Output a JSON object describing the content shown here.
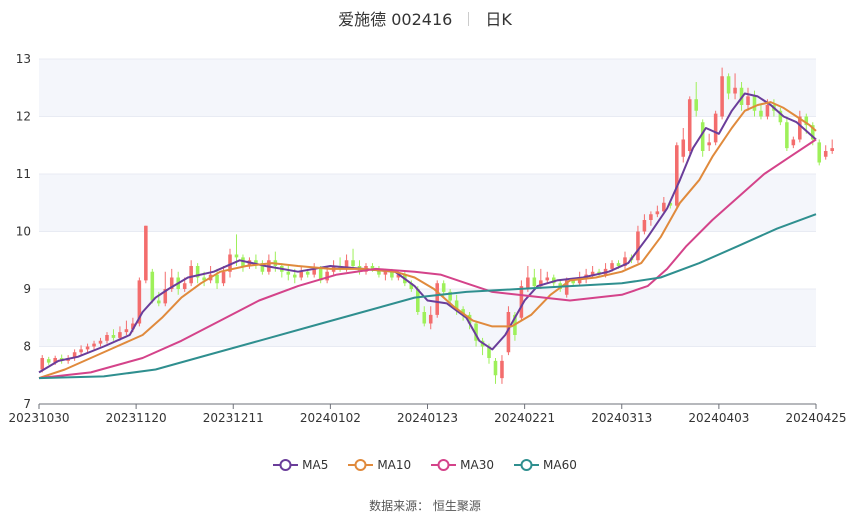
{
  "title": {
    "name_code": "爱施德 002416",
    "period": "日K"
  },
  "source": {
    "label": "数据来源：",
    "provider": "恒生聚源"
  },
  "colors": {
    "up": "#f36d6d",
    "down": "#9ef05a",
    "grid": "#e8ebf3",
    "band": "#f4f6fb",
    "axis_text": "#333333"
  },
  "chart_data": {
    "type": "candlestick",
    "ylim": [
      7,
      13
    ],
    "yticks": [
      7,
      8,
      9,
      10,
      11,
      12,
      13
    ],
    "xlim": [
      0,
      120
    ],
    "xticks": [
      {
        "i": 0,
        "label": "20231030"
      },
      {
        "i": 15,
        "label": "20231120"
      },
      {
        "i": 30,
        "label": "20231211"
      },
      {
        "i": 45,
        "label": "20240102"
      },
      {
        "i": 60,
        "label": "20240123"
      },
      {
        "i": 75,
        "label": "20240221"
      },
      {
        "i": 90,
        "label": "20240313"
      },
      {
        "i": 105,
        "label": "20240403"
      },
      {
        "i": 120,
        "label": "20240425"
      }
    ],
    "candles": [
      [
        7.6,
        7.8,
        7.55,
        7.85
      ],
      [
        7.78,
        7.72,
        7.68,
        7.82
      ],
      [
        7.72,
        7.8,
        7.68,
        7.84
      ],
      [
        7.8,
        7.75,
        7.7,
        7.86
      ],
      [
        7.75,
        7.8,
        7.7,
        7.85
      ],
      [
        7.8,
        7.9,
        7.75,
        7.95
      ],
      [
        7.9,
        7.95,
        7.85,
        8.02
      ],
      [
        7.95,
        8.0,
        7.9,
        8.05
      ],
      [
        8.0,
        8.05,
        7.95,
        8.1
      ],
      [
        8.05,
        8.1,
        8.0,
        8.15
      ],
      [
        8.1,
        8.2,
        8.05,
        8.25
      ],
      [
        8.2,
        8.15,
        8.1,
        8.3
      ],
      [
        8.15,
        8.25,
        8.1,
        8.35
      ],
      [
        8.25,
        8.3,
        8.2,
        8.45
      ],
      [
        8.3,
        8.4,
        8.25,
        8.5
      ],
      [
        8.4,
        9.15,
        8.35,
        9.2
      ],
      [
        9.15,
        10.1,
        9.1,
        10.1
      ],
      [
        9.3,
        8.8,
        8.75,
        9.35
      ],
      [
        8.8,
        8.75,
        8.7,
        8.95
      ],
      [
        8.75,
        9.0,
        8.7,
        9.3
      ],
      [
        9.0,
        9.2,
        8.95,
        9.35
      ],
      [
        9.2,
        9.0,
        8.9,
        9.3
      ],
      [
        9.0,
        9.1,
        8.95,
        9.2
      ],
      [
        9.1,
        9.4,
        9.05,
        9.5
      ],
      [
        9.4,
        9.2,
        9.1,
        9.45
      ],
      [
        9.2,
        9.15,
        9.05,
        9.3
      ],
      [
        9.15,
        9.25,
        9.1,
        9.4
      ],
      [
        9.25,
        9.1,
        9.0,
        9.35
      ],
      [
        9.1,
        9.3,
        9.05,
        9.4
      ],
      [
        9.3,
        9.6,
        9.2,
        9.7
      ],
      [
        9.6,
        9.55,
        9.4,
        9.95
      ],
      [
        9.55,
        9.4,
        9.3,
        9.6
      ],
      [
        9.4,
        9.5,
        9.35,
        9.55
      ],
      [
        9.5,
        9.45,
        9.35,
        9.6
      ],
      [
        9.45,
        9.3,
        9.25,
        9.5
      ],
      [
        9.3,
        9.5,
        9.25,
        9.6
      ],
      [
        9.5,
        9.4,
        9.3,
        9.65
      ],
      [
        9.4,
        9.3,
        9.2,
        9.45
      ],
      [
        9.3,
        9.25,
        9.15,
        9.4
      ],
      [
        9.25,
        9.2,
        9.1,
        9.35
      ],
      [
        9.2,
        9.3,
        9.15,
        9.4
      ],
      [
        9.3,
        9.25,
        9.2,
        9.35
      ],
      [
        9.25,
        9.35,
        9.2,
        9.45
      ],
      [
        9.35,
        9.15,
        9.1,
        9.4
      ],
      [
        9.15,
        9.3,
        9.1,
        9.4
      ],
      [
        9.3,
        9.4,
        9.25,
        9.5
      ],
      [
        9.4,
        9.35,
        9.3,
        9.55
      ],
      [
        9.35,
        9.5,
        9.3,
        9.6
      ],
      [
        9.5,
        9.4,
        9.35,
        9.7
      ],
      [
        9.4,
        9.3,
        9.25,
        9.5
      ],
      [
        9.3,
        9.4,
        9.25,
        9.45
      ],
      [
        9.4,
        9.35,
        9.3,
        9.45
      ],
      [
        9.35,
        9.25,
        9.2,
        9.4
      ],
      [
        9.25,
        9.3,
        9.15,
        9.35
      ],
      [
        9.3,
        9.2,
        9.15,
        9.35
      ],
      [
        9.2,
        9.25,
        9.15,
        9.3
      ],
      [
        9.25,
        9.1,
        9.05,
        9.3
      ],
      [
        9.1,
        9.0,
        8.95,
        9.15
      ],
      [
        9.0,
        8.6,
        8.55,
        9.05
      ],
      [
        8.6,
        8.4,
        8.35,
        8.7
      ],
      [
        8.4,
        8.55,
        8.3,
        8.7
      ],
      [
        8.55,
        9.1,
        8.5,
        9.15
      ],
      [
        9.1,
        8.95,
        8.85,
        9.15
      ],
      [
        8.95,
        8.8,
        8.7,
        9.0
      ],
      [
        8.8,
        8.65,
        8.55,
        8.9
      ],
      [
        8.65,
        8.55,
        8.45,
        8.7
      ],
      [
        8.55,
        8.4,
        8.3,
        8.6
      ],
      [
        8.4,
        8.1,
        8.0,
        8.45
      ],
      [
        8.1,
        8.0,
        7.85,
        8.15
      ],
      [
        8.0,
        7.8,
        7.7,
        8.05
      ],
      [
        7.75,
        7.5,
        7.35,
        7.8
      ],
      [
        7.45,
        7.75,
        7.35,
        7.85
      ],
      [
        7.9,
        8.6,
        7.85,
        8.7
      ],
      [
        8.55,
        8.2,
        8.1,
        8.6
      ],
      [
        8.5,
        9.05,
        8.45,
        9.15
      ],
      [
        9.0,
        9.2,
        8.95,
        9.4
      ],
      [
        9.2,
        9.05,
        9.0,
        9.35
      ],
      [
        9.05,
        9.15,
        9.0,
        9.35
      ],
      [
        9.15,
        9.2,
        9.1,
        9.3
      ],
      [
        9.2,
        9.1,
        9.05,
        9.25
      ],
      [
        9.1,
        9.0,
        8.95,
        9.15
      ],
      [
        8.9,
        9.15,
        8.85,
        9.2
      ],
      [
        9.15,
        9.1,
        9.05,
        9.2
      ],
      [
        9.1,
        9.2,
        9.05,
        9.3
      ],
      [
        9.2,
        9.25,
        9.1,
        9.35
      ],
      [
        9.25,
        9.3,
        9.2,
        9.4
      ],
      [
        9.3,
        9.25,
        9.2,
        9.35
      ],
      [
        9.25,
        9.35,
        9.2,
        9.45
      ],
      [
        9.35,
        9.45,
        9.3,
        9.5
      ],
      [
        9.45,
        9.4,
        9.35,
        9.5
      ],
      [
        9.4,
        9.55,
        9.35,
        9.65
      ],
      [
        9.55,
        9.5,
        9.45,
        9.6
      ],
      [
        9.5,
        10.0,
        9.45,
        10.1
      ],
      [
        10.0,
        10.2,
        9.95,
        10.3
      ],
      [
        10.2,
        10.3,
        10.1,
        10.35
      ],
      [
        10.3,
        10.35,
        10.25,
        10.45
      ],
      [
        10.35,
        10.5,
        10.3,
        10.6
      ],
      [
        10.5,
        10.45,
        10.4,
        10.55
      ],
      [
        10.45,
        11.5,
        10.4,
        11.55
      ],
      [
        11.3,
        11.6,
        11.2,
        11.8
      ],
      [
        11.4,
        12.3,
        11.35,
        12.35
      ],
      [
        12.3,
        12.1,
        12.0,
        12.6
      ],
      [
        11.9,
        11.4,
        11.3,
        11.95
      ],
      [
        11.5,
        11.55,
        11.4,
        11.7
      ],
      [
        11.55,
        12.05,
        11.5,
        12.1
      ],
      [
        12.0,
        12.7,
        11.95,
        12.85
      ],
      [
        12.7,
        12.4,
        12.3,
        12.75
      ],
      [
        12.4,
        12.5,
        12.3,
        12.75
      ],
      [
        12.5,
        12.2,
        12.1,
        12.6
      ],
      [
        12.2,
        12.35,
        12.1,
        12.5
      ],
      [
        12.35,
        12.1,
        12.0,
        12.45
      ],
      [
        12.1,
        12.0,
        11.95,
        12.2
      ],
      [
        12.0,
        12.2,
        11.95,
        12.3
      ],
      [
        12.2,
        12.1,
        12.0,
        12.3
      ],
      [
        12.1,
        11.9,
        11.85,
        12.15
      ],
      [
        11.9,
        11.45,
        11.4,
        12.0
      ],
      [
        11.5,
        11.6,
        11.45,
        11.65
      ],
      [
        11.6,
        12.0,
        11.55,
        12.1
      ],
      [
        12.0,
        11.85,
        11.7,
        12.05
      ],
      [
        11.85,
        11.6,
        11.5,
        11.9
      ],
      [
        11.55,
        11.2,
        11.15,
        11.6
      ],
      [
        11.3,
        11.4,
        11.25,
        11.5
      ],
      [
        11.4,
        11.45,
        11.35,
        11.6
      ]
    ],
    "series": [
      {
        "name": "MA5",
        "color": "#6a3d9a",
        "points": [
          [
            0,
            7.55
          ],
          [
            3,
            7.75
          ],
          [
            6,
            7.82
          ],
          [
            10,
            8.0
          ],
          [
            14,
            8.2
          ],
          [
            16,
            8.6
          ],
          [
            18,
            8.85
          ],
          [
            20,
            9.0
          ],
          [
            23,
            9.2
          ],
          [
            27,
            9.3
          ],
          [
            31,
            9.5
          ],
          [
            35,
            9.4
          ],
          [
            40,
            9.3
          ],
          [
            45,
            9.4
          ],
          [
            50,
            9.35
          ],
          [
            55,
            9.3
          ],
          [
            58,
            9.05
          ],
          [
            60,
            8.8
          ],
          [
            63,
            8.75
          ],
          [
            66,
            8.5
          ],
          [
            68,
            8.1
          ],
          [
            70,
            7.95
          ],
          [
            72,
            8.2
          ],
          [
            75,
            8.8
          ],
          [
            77,
            9.05
          ],
          [
            80,
            9.15
          ],
          [
            84,
            9.2
          ],
          [
            88,
            9.3
          ],
          [
            91,
            9.45
          ],
          [
            94,
            9.9
          ],
          [
            97,
            10.4
          ],
          [
            99,
            10.9
          ],
          [
            101,
            11.45
          ],
          [
            103,
            11.8
          ],
          [
            105,
            11.7
          ],
          [
            107,
            12.1
          ],
          [
            109,
            12.4
          ],
          [
            111,
            12.35
          ],
          [
            113,
            12.2
          ],
          [
            115,
            12.0
          ],
          [
            117,
            11.9
          ],
          [
            119,
            11.7
          ],
          [
            120,
            11.6
          ]
        ]
      },
      {
        "name": "MA10",
        "color": "#e08a3c",
        "points": [
          [
            0,
            7.45
          ],
          [
            4,
            7.6
          ],
          [
            8,
            7.8
          ],
          [
            12,
            8.0
          ],
          [
            16,
            8.2
          ],
          [
            19,
            8.5
          ],
          [
            22,
            8.85
          ],
          [
            25,
            9.1
          ],
          [
            28,
            9.3
          ],
          [
            32,
            9.4
          ],
          [
            36,
            9.45
          ],
          [
            40,
            9.4
          ],
          [
            45,
            9.35
          ],
          [
            50,
            9.35
          ],
          [
            55,
            9.3
          ],
          [
            58,
            9.2
          ],
          [
            61,
            9.0
          ],
          [
            64,
            8.7
          ],
          [
            67,
            8.45
          ],
          [
            70,
            8.35
          ],
          [
            73,
            8.35
          ],
          [
            76,
            8.55
          ],
          [
            79,
            8.9
          ],
          [
            82,
            9.15
          ],
          [
            86,
            9.2
          ],
          [
            90,
            9.3
          ],
          [
            93,
            9.45
          ],
          [
            96,
            9.9
          ],
          [
            99,
            10.5
          ],
          [
            102,
            10.9
          ],
          [
            104,
            11.3
          ],
          [
            107,
            11.8
          ],
          [
            109,
            12.1
          ],
          [
            111,
            12.2
          ],
          [
            113,
            12.25
          ],
          [
            115,
            12.15
          ],
          [
            117,
            12.0
          ],
          [
            119,
            11.85
          ],
          [
            120,
            11.75
          ]
        ]
      },
      {
        "name": "MA30",
        "color": "#d4438a",
        "points": [
          [
            0,
            7.45
          ],
          [
            8,
            7.55
          ],
          [
            16,
            7.8
          ],
          [
            22,
            8.1
          ],
          [
            28,
            8.45
          ],
          [
            34,
            8.8
          ],
          [
            40,
            9.05
          ],
          [
            46,
            9.25
          ],
          [
            52,
            9.35
          ],
          [
            58,
            9.3
          ],
          [
            62,
            9.25
          ],
          [
            66,
            9.1
          ],
          [
            70,
            8.95
          ],
          [
            74,
            8.9
          ],
          [
            78,
            8.85
          ],
          [
            82,
            8.8
          ],
          [
            86,
            8.85
          ],
          [
            90,
            8.9
          ],
          [
            94,
            9.05
          ],
          [
            97,
            9.35
          ],
          [
            100,
            9.75
          ],
          [
            104,
            10.2
          ],
          [
            108,
            10.6
          ],
          [
            112,
            11.0
          ],
          [
            116,
            11.3
          ],
          [
            120,
            11.6
          ]
        ]
      },
      {
        "name": "MA60",
        "color": "#2f8f8f",
        "points": [
          [
            0,
            7.45
          ],
          [
            10,
            7.48
          ],
          [
            18,
            7.6
          ],
          [
            26,
            7.85
          ],
          [
            34,
            8.1
          ],
          [
            42,
            8.35
          ],
          [
            50,
            8.6
          ],
          [
            58,
            8.85
          ],
          [
            66,
            8.95
          ],
          [
            74,
            9.0
          ],
          [
            82,
            9.05
          ],
          [
            90,
            9.1
          ],
          [
            96,
            9.2
          ],
          [
            102,
            9.45
          ],
          [
            108,
            9.75
          ],
          [
            114,
            10.05
          ],
          [
            120,
            10.3
          ]
        ]
      }
    ]
  }
}
